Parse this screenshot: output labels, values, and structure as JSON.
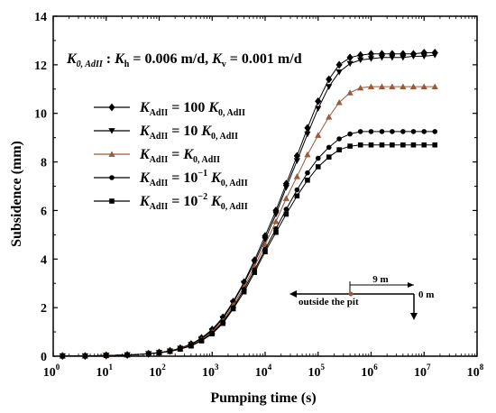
{
  "chart_data": {
    "type": "line",
    "title": {
      "k0": "K",
      "k0_sub": "0, AdII",
      "colon": " : ",
      "kh": "K",
      "kh_sub": "h",
      "kh_val": " = 0.006 m/d, ",
      "kv": "K",
      "kv_sub": "v",
      "kv_val": " = 0.001 m/d"
    },
    "xlabel": "Pumping time (s)",
    "ylabel": "Subsidence (mm)",
    "xscale": "log",
    "xlim": [
      1,
      100000000
    ],
    "ylim": [
      0,
      14
    ],
    "xticks": [
      {
        "base": "10",
        "exp": "0"
      },
      {
        "base": "10",
        "exp": "1"
      },
      {
        "base": "10",
        "exp": "2"
      },
      {
        "base": "10",
        "exp": "3"
      },
      {
        "base": "10",
        "exp": "4"
      },
      {
        "base": "10",
        "exp": "5"
      },
      {
        "base": "10",
        "exp": "6"
      },
      {
        "base": "10",
        "exp": "7"
      },
      {
        "base": "10",
        "exp": "8"
      }
    ],
    "yticks": [
      "0",
      "2",
      "4",
      "6",
      "8",
      "10",
      "12",
      "14"
    ],
    "x": [
      1.5,
      2.5,
      4,
      6,
      10,
      16,
      25,
      40,
      63,
      100,
      160,
      250,
      400,
      630,
      1000,
      1600,
      2500,
      4000,
      6300,
      10000,
      16000,
      25000,
      40000,
      63000,
      100000,
      160000,
      250000,
      400000,
      630000,
      1000000,
      1600000,
      2500000,
      4000000,
      6300000,
      10000000,
      16000000
    ],
    "series": [
      {
        "label_main": "K",
        "label_sub": "AdII",
        "label_rest": " = 100 ",
        "label_k": "K",
        "label_ksub": "0, AdII",
        "color": "#000000",
        "marker": "diamond",
        "values": [
          0.01,
          0.01,
          0.01,
          0.02,
          0.03,
          0.04,
          0.05,
          0.07,
          0.1,
          0.15,
          0.22,
          0.33,
          0.5,
          0.75,
          1.1,
          1.6,
          2.25,
          3.05,
          3.95,
          4.95,
          6.0,
          7.1,
          8.25,
          9.4,
          10.5,
          11.4,
          12.0,
          12.3,
          12.4,
          12.45,
          12.45,
          12.45,
          12.45,
          12.45,
          12.5,
          12.5
        ]
      },
      {
        "label_main": "K",
        "label_sub": "AdII",
        "label_rest": " = 10 ",
        "label_k": "K",
        "label_ksub": "0, AdII",
        "color": "#000000",
        "marker": "triangle-down",
        "values": [
          0.01,
          0.01,
          0.01,
          0.02,
          0.03,
          0.04,
          0.05,
          0.07,
          0.1,
          0.15,
          0.21,
          0.32,
          0.48,
          0.72,
          1.05,
          1.55,
          2.2,
          3.0,
          3.85,
          4.8,
          5.85,
          6.95,
          8.05,
          9.15,
          10.2,
          11.1,
          11.7,
          12.05,
          12.2,
          12.25,
          12.3,
          12.3,
          12.3,
          12.35,
          12.35,
          12.4
        ]
      },
      {
        "label_main": "K",
        "label_sub": "AdII",
        "label_rest": " = ",
        "label_k": "K",
        "label_ksub": "0, AdII",
        "color": "#9b5a3c",
        "marker": "triangle-up",
        "values": [
          0.01,
          0.01,
          0.01,
          0.02,
          0.03,
          0.04,
          0.05,
          0.07,
          0.1,
          0.14,
          0.2,
          0.3,
          0.45,
          0.68,
          1.0,
          1.45,
          2.1,
          2.85,
          3.7,
          4.6,
          5.55,
          6.5,
          7.4,
          8.3,
          9.1,
          9.85,
          10.45,
          10.85,
          11.05,
          11.1,
          11.1,
          11.1,
          11.1,
          11.1,
          11.1,
          11.1
        ]
      },
      {
        "label_main": "K",
        "label_sub": "AdII",
        "label_rest": " = 10",
        "label_sup": "−1",
        "label_k": " K",
        "label_ksub": "0, AdII",
        "color": "#000000",
        "marker": "circle",
        "values": [
          0.01,
          0.01,
          0.01,
          0.02,
          0.03,
          0.04,
          0.05,
          0.07,
          0.1,
          0.14,
          0.2,
          0.29,
          0.43,
          0.65,
          0.95,
          1.4,
          2.0,
          2.75,
          3.55,
          4.4,
          5.25,
          6.05,
          6.85,
          7.55,
          8.15,
          8.6,
          8.95,
          9.15,
          9.25,
          9.25,
          9.25,
          9.25,
          9.25,
          9.25,
          9.25,
          9.25
        ]
      },
      {
        "label_main": "K",
        "label_sub": "AdII",
        "label_rest": " = 10",
        "label_sup": "−2",
        "label_k": " K",
        "label_ksub": "0, AdII",
        "color": "#000000",
        "marker": "square",
        "values": [
          0.01,
          0.01,
          0.01,
          0.02,
          0.03,
          0.04,
          0.05,
          0.07,
          0.1,
          0.14,
          0.2,
          0.29,
          0.42,
          0.63,
          0.92,
          1.35,
          1.95,
          2.65,
          3.45,
          4.3,
          5.1,
          5.85,
          6.6,
          7.25,
          7.8,
          8.2,
          8.5,
          8.65,
          8.7,
          8.7,
          8.7,
          8.7,
          8.7,
          8.7,
          8.7,
          8.7
        ]
      }
    ],
    "legend_position": "middle-left",
    "annotation": {
      "inside_label": "9 m",
      "outside_label": "outside the pit",
      "zero_label": "0 m"
    }
  }
}
